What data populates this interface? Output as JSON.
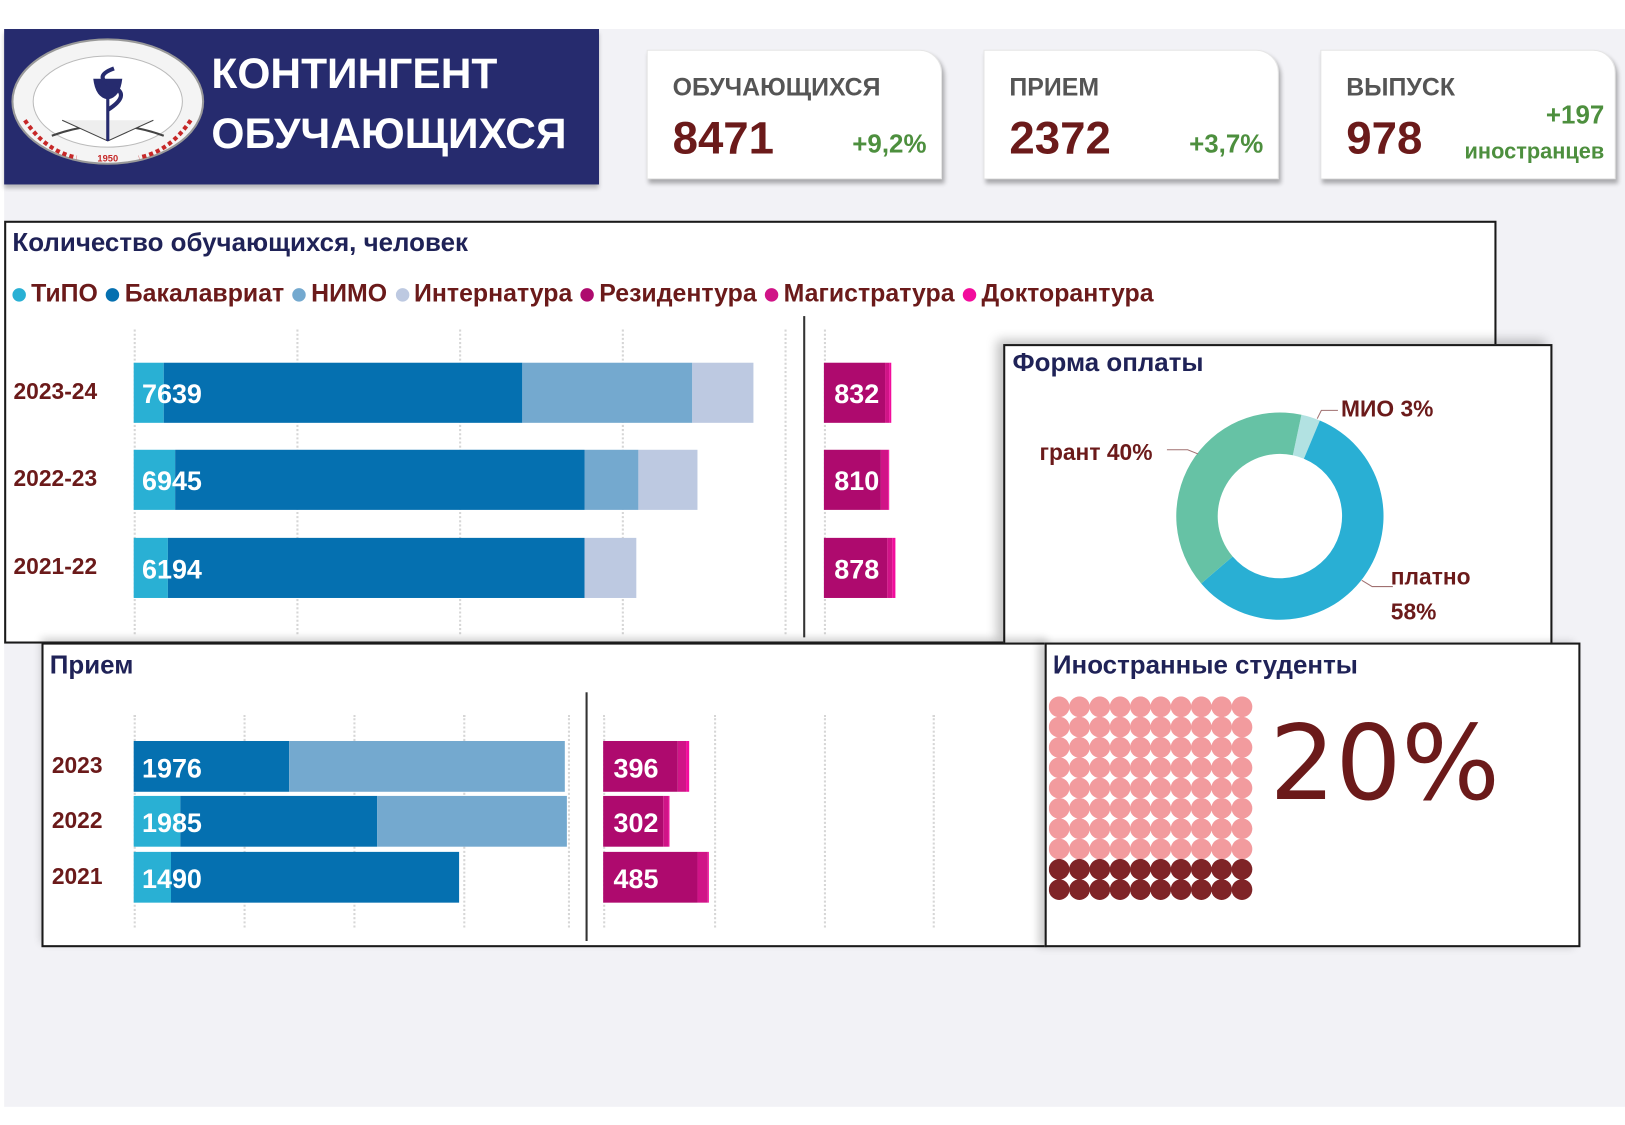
{
  "header": {
    "title_line1": "КОНТИНГЕНТ",
    "title_line2": "ОБУЧАЮЩИХСЯ",
    "logo": {
      "text": "КАРАГАНДЫ МЕДИЦИНА УНИВЕРСИТЕТІ",
      "year": "1950"
    }
  },
  "kpis": [
    {
      "label": "ОБУЧАЮЩИХСЯ",
      "value": "8471",
      "delta": "+9,2%"
    },
    {
      "label": "ПРИЕМ",
      "value": "2372",
      "delta": "+3,7%"
    },
    {
      "label": "ВЫПУСК",
      "value": "978",
      "delta": "+197",
      "delta_note": "иностранцев"
    }
  ],
  "colors": {
    "ТиПО": "#29b0d4",
    "Бакалавриат": "#0570b0",
    "НИМО": "#74a9cf",
    "Интернатура": "#bdc9e1",
    "Резидентура": "#ae0a6e",
    "Магистратура": "#d01487",
    "Докторантура": "#f20c9c"
  },
  "legend": [
    "ТиПО",
    "Бакалавриат",
    "НИМО",
    "Интернатура",
    "Резидентура",
    "Магистратура",
    "Докторантура"
  ],
  "chart_data": [
    {
      "type": "bar",
      "orientation": "horizontal",
      "stacked": true,
      "title": "Количество обучающихся, человек",
      "categories": [
        "2023-24",
        "2022-23",
        "2021-22"
      ],
      "xlim": [
        0,
        8000
      ],
      "grid": true,
      "series": [
        {
          "name": "ТиПО",
          "values": [
            370,
            510,
            420
          ]
        },
        {
          "name": "Бакалавриат",
          "values": [
            4420,
            5045,
            5135
          ]
        },
        {
          "name": "НИМО",
          "values": [
            2095,
            665,
            0
          ]
        },
        {
          "name": "Интернатура",
          "values": [
            754,
            725,
            639
          ]
        }
      ],
      "total_labels": [
        "7639",
        "6945",
        "6194"
      ],
      "secondary": {
        "series": [
          {
            "name": "Резидентура",
            "values": [
              760,
              706,
              782
            ]
          },
          {
            "name": "Магистратура",
            "values": [
              50,
              90,
              60
            ]
          },
          {
            "name": "Докторантура",
            "values": [
              22,
              14,
              36
            ]
          }
        ],
        "total_labels": [
          "832",
          "810",
          "878"
        ]
      }
    },
    {
      "type": "pie",
      "donut": true,
      "title": "Форма оплаты",
      "slices": [
        {
          "name": "МИО",
          "value": 3,
          "label": "МИО 3%",
          "color": "#b2e2e2"
        },
        {
          "name": "платно",
          "value": 58,
          "label_line1": "платно",
          "label_line2": "58%",
          "color": "#29afd4"
        },
        {
          "name": "грант",
          "value": 40,
          "label": "грант 40%",
          "color": "#66c2a5"
        }
      ]
    },
    {
      "type": "bar",
      "orientation": "horizontal",
      "stacked": true,
      "title": "Прием",
      "categories": [
        "2023",
        "2022",
        "2021"
      ],
      "xlim": [
        0,
        2000
      ],
      "grid": true,
      "series": [
        {
          "name": "ТиПО",
          "values": [
            0,
            214,
            171
          ]
        },
        {
          "name": "Бакалавриат",
          "values": [
            712,
            902,
            1319
          ]
        },
        {
          "name": "НИМО",
          "values": [
            1264,
            869,
            0
          ]
        }
      ],
      "total_labels": [
        "1976",
        "1985",
        "1490"
      ],
      "secondary": {
        "series": [
          {
            "name": "Резидентура",
            "values": [
              343,
              277,
              430
            ]
          },
          {
            "name": "Магистратура",
            "values": [
              38,
              20,
              47
            ]
          },
          {
            "name": "Докторантура",
            "values": [
              15,
              5,
              8
            ]
          }
        ],
        "total_labels": [
          "396",
          "302",
          "485"
        ]
      }
    },
    {
      "type": "waffle",
      "title": "Иностранные студенты",
      "percent_label": "20%",
      "value": 20,
      "total": 100,
      "colors": {
        "highlight": "#7f2427",
        "rest": "#f29b9e"
      }
    }
  ]
}
